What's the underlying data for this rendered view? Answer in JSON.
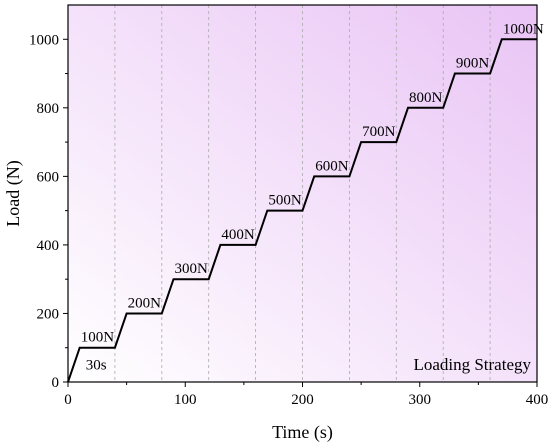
{
  "chart_data": {
    "type": "line",
    "xlabel": "Time (s)",
    "ylabel": "Load (N)",
    "xlim": [
      0,
      400
    ],
    "ylim": [
      0,
      1100
    ],
    "xticks": [
      0,
      100,
      200,
      300,
      400
    ],
    "yticks": [
      0,
      200,
      400,
      600,
      800,
      1000
    ],
    "x_gridlines": [
      40,
      80,
      120,
      160,
      200,
      240,
      280,
      320,
      360
    ],
    "background_gradient": [
      "#ffffff",
      "#e9c4f5"
    ],
    "line_color": "#000000",
    "grid_color": "#aaaaaa",
    "series": [
      {
        "x": [
          0,
          10,
          40,
          50,
          80,
          90,
          120,
          130,
          160,
          170,
          200,
          210,
          240,
          250,
          280,
          290,
          320,
          330,
          360,
          370,
          400
        ],
        "y": [
          0,
          100,
          100,
          200,
          200,
          300,
          300,
          400,
          400,
          500,
          500,
          600,
          600,
          700,
          700,
          800,
          800,
          900,
          900,
          1000,
          1000
        ]
      }
    ],
    "annotations": [
      {
        "text": "100N",
        "x": 10,
        "y": 100
      },
      {
        "text": "200N",
        "x": 50,
        "y": 200
      },
      {
        "text": "300N",
        "x": 90,
        "y": 300
      },
      {
        "text": "400N",
        "x": 130,
        "y": 400
      },
      {
        "text": "500N",
        "x": 170,
        "y": 500
      },
      {
        "text": "600N",
        "x": 210,
        "y": 600
      },
      {
        "text": "700N",
        "x": 250,
        "y": 700
      },
      {
        "text": "800N",
        "x": 290,
        "y": 800
      },
      {
        "text": "900N",
        "x": 330,
        "y": 900
      },
      {
        "text": "1000N",
        "x": 370,
        "y": 1000
      }
    ],
    "note": {
      "text": "30s",
      "x": 24,
      "y": 40
    },
    "legend": {
      "text": "Loading Strategy",
      "placement": "bottom-right"
    }
  }
}
